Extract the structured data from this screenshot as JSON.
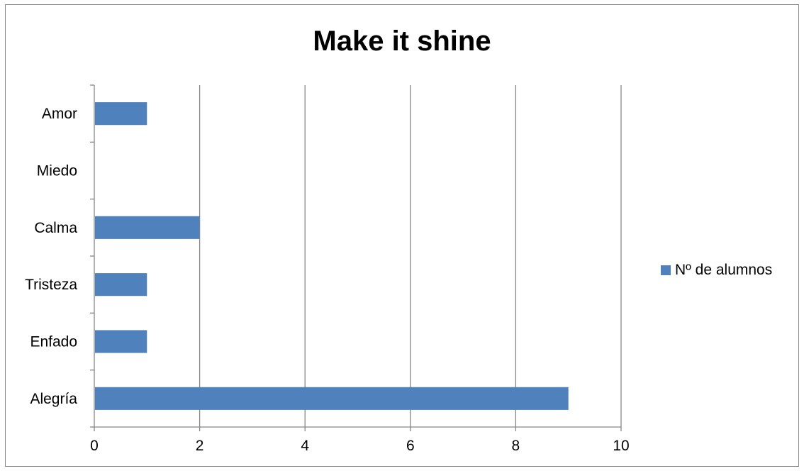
{
  "chart_data": {
    "type": "bar",
    "orientation": "horizontal",
    "title": "Make it shine",
    "categories": [
      "Alegría",
      "Enfado",
      "Tristeza",
      "Calma",
      "Miedo",
      "Amor"
    ],
    "series": [
      {
        "name": "Nº de alumnos",
        "values": [
          9,
          1,
          1,
          2,
          0,
          1
        ],
        "color": "#4F81BD"
      }
    ],
    "xlim": [
      0,
      10
    ],
    "x_ticks": [
      "0",
      "2",
      "4",
      "6",
      "8",
      "10"
    ],
    "grid": "vertical major gridlines",
    "legend_position": "right"
  }
}
